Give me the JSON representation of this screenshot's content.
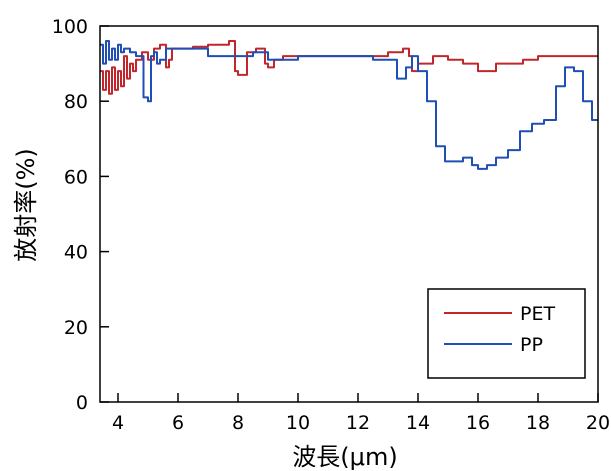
{
  "chart_data": {
    "type": "line",
    "xlabel": "波長(μm)",
    "ylabel": "放射率(%)",
    "xlim": [
      3.4,
      20
    ],
    "ylim": [
      0,
      100
    ],
    "xticks": [
      4,
      6,
      8,
      10,
      12,
      14,
      16,
      18,
      20
    ],
    "yticks": [
      0,
      20,
      40,
      60,
      80,
      100
    ],
    "grid": false,
    "legend_position": "bottom-right",
    "series": [
      {
        "name": "PET",
        "color": "#c0272d",
        "x": [
          3.4,
          3.5,
          3.6,
          3.7,
          3.8,
          3.9,
          4.0,
          4.1,
          4.2,
          4.3,
          4.4,
          4.5,
          4.6,
          4.8,
          5.0,
          5.2,
          5.4,
          5.6,
          5.7,
          5.8,
          6.0,
          6.5,
          7.0,
          7.5,
          7.7,
          7.9,
          8.0,
          8.3,
          8.6,
          8.9,
          9.0,
          9.2,
          9.5,
          10.0,
          11.0,
          12.0,
          13.0,
          13.5,
          13.7,
          13.8,
          14.0,
          14.5,
          15.0,
          15.5,
          16.0,
          16.3,
          16.6,
          17.0,
          17.5,
          18.0,
          19.0,
          20.0
        ],
        "y": [
          88,
          83,
          88,
          82,
          89,
          83,
          88,
          84,
          92,
          86,
          90,
          88,
          91,
          93,
          91,
          94,
          95,
          89,
          91,
          94,
          94,
          94.5,
          95,
          95,
          96,
          88,
          87,
          93,
          94,
          90,
          89,
          91,
          92,
          92,
          92,
          92,
          93,
          94,
          92,
          88,
          90,
          92,
          91,
          90,
          88,
          88,
          90,
          90,
          91,
          92,
          92,
          92
        ]
      },
      {
        "name": "PP",
        "color": "#1f4fb4",
        "x": [
          3.4,
          3.5,
          3.6,
          3.7,
          3.8,
          3.9,
          4.0,
          4.1,
          4.2,
          4.4,
          4.6,
          4.8,
          4.85,
          5.0,
          5.1,
          5.2,
          5.3,
          5.4,
          5.6,
          6.0,
          7.0,
          8.0,
          8.5,
          9.0,
          10.0,
          11.0,
          12.0,
          12.5,
          13.0,
          13.3,
          13.6,
          13.8,
          14.0,
          14.3,
          14.6,
          14.9,
          15.2,
          15.5,
          15.8,
          16.0,
          16.3,
          16.6,
          17.0,
          17.4,
          17.8,
          18.2,
          18.6,
          18.9,
          19.2,
          19.5,
          19.8,
          20.0
        ],
        "y": [
          95,
          90,
          96,
          91,
          94,
          91,
          95,
          93,
          94,
          93,
          92,
          92,
          81,
          80,
          92,
          93,
          90,
          91,
          94,
          94,
          92,
          92,
          93,
          91,
          92,
          92,
          92,
          91,
          91,
          86,
          89,
          92,
          88,
          80,
          68,
          64,
          64,
          65,
          63,
          62,
          63,
          65,
          67,
          72,
          74,
          75,
          84,
          89,
          88,
          80,
          75,
          75
        ]
      }
    ]
  }
}
